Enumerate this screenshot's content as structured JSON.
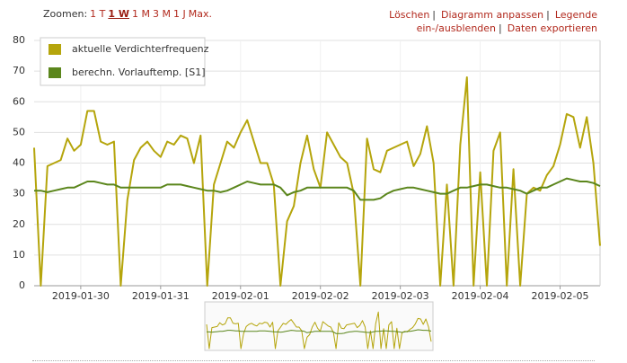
{
  "toolbar": {
    "label": "Zoomen:",
    "options": [
      "1 T",
      "1 W",
      "1 M",
      "3 M",
      "1 J",
      "Max."
    ],
    "active": 1,
    "actions": [
      "Löschen",
      "Diagramm anpassen",
      "Legende ein-/ausblenden",
      "Daten exportieren"
    ],
    "separator": "|"
  },
  "chart_data": {
    "type": "line",
    "x": [
      0,
      2,
      4,
      6,
      8,
      10,
      12,
      14,
      16,
      18,
      20,
      22,
      24,
      26,
      28,
      30,
      32,
      34,
      36,
      38,
      40,
      42,
      44,
      46,
      48,
      50,
      52,
      54,
      56,
      58,
      60,
      62,
      64,
      66,
      68,
      70,
      72,
      74,
      76,
      78,
      80,
      82,
      84,
      86,
      88,
      90,
      92,
      94,
      96,
      98,
      100,
      102,
      104,
      106,
      108,
      110,
      112,
      114,
      116,
      118,
      120,
      122,
      124,
      126,
      128,
      130,
      132,
      134,
      136,
      138,
      140,
      142,
      144,
      146,
      148,
      150,
      152,
      154,
      156,
      158,
      160,
      162,
      164,
      166,
      168,
      170
    ],
    "series": [
      {
        "name": "aktuelle Verdichterfrequenz",
        "color": "#b5a50c",
        "values": [
          45,
          0,
          39,
          40,
          41,
          48,
          44,
          46,
          57,
          57,
          47,
          46,
          47,
          0,
          28,
          41,
          45,
          47,
          44,
          42,
          47,
          46,
          49,
          48,
          40,
          49,
          0,
          33,
          40,
          47,
          45,
          50,
          54,
          47,
          40,
          40,
          33,
          0,
          21,
          26,
          40,
          49,
          38,
          32,
          50,
          46,
          42,
          40,
          30,
          0,
          48,
          38,
          37,
          44,
          45,
          46,
          47,
          39,
          43,
          52,
          40,
          0,
          33,
          0,
          46,
          68,
          0,
          37,
          0,
          44,
          50,
          0,
          38,
          0,
          30,
          32,
          31,
          36,
          39,
          46,
          56,
          55,
          45,
          55,
          40,
          13
        ]
      },
      {
        "name": "berechn. Vorlauftemp. [S1]",
        "color": "#5b861c",
        "values": [
          31,
          31,
          30.5,
          31,
          31.5,
          32,
          32,
          33,
          34,
          34,
          33.5,
          33,
          33,
          32,
          32,
          32,
          32,
          32,
          32,
          32,
          33,
          33,
          33,
          32.5,
          32,
          31.5,
          31,
          31,
          30.5,
          31,
          32,
          33,
          34,
          33.5,
          33,
          33,
          33,
          32,
          29.5,
          30.5,
          31,
          32,
          32,
          32,
          32,
          32,
          32,
          32,
          31,
          28,
          28,
          28,
          28.5,
          30,
          31,
          31.5,
          32,
          32,
          31.5,
          31,
          30.5,
          30,
          30,
          31,
          32,
          32,
          32.5,
          33,
          33,
          32.5,
          32,
          32,
          31.5,
          31,
          30,
          31,
          32,
          32,
          33,
          34,
          35,
          34.5,
          34,
          34,
          33.5,
          32.5
        ]
      }
    ],
    "xlim": [
      0,
      170
    ],
    "xticks": [
      {
        "value": 14,
        "label": "2019-01-30"
      },
      {
        "value": 38,
        "label": "2019-01-31"
      },
      {
        "value": 62,
        "label": "2019-02-01"
      },
      {
        "value": 86,
        "label": "2019-02-02"
      },
      {
        "value": 110,
        "label": "2019-02-03"
      },
      {
        "value": 134,
        "label": "2019-02-04"
      },
      {
        "value": 158,
        "label": "2019-02-05"
      }
    ],
    "ylim": [
      0,
      80
    ],
    "yticks": [
      0,
      10,
      20,
      30,
      40,
      50,
      60,
      70,
      80
    ],
    "grid": true,
    "legend": "top-left"
  }
}
